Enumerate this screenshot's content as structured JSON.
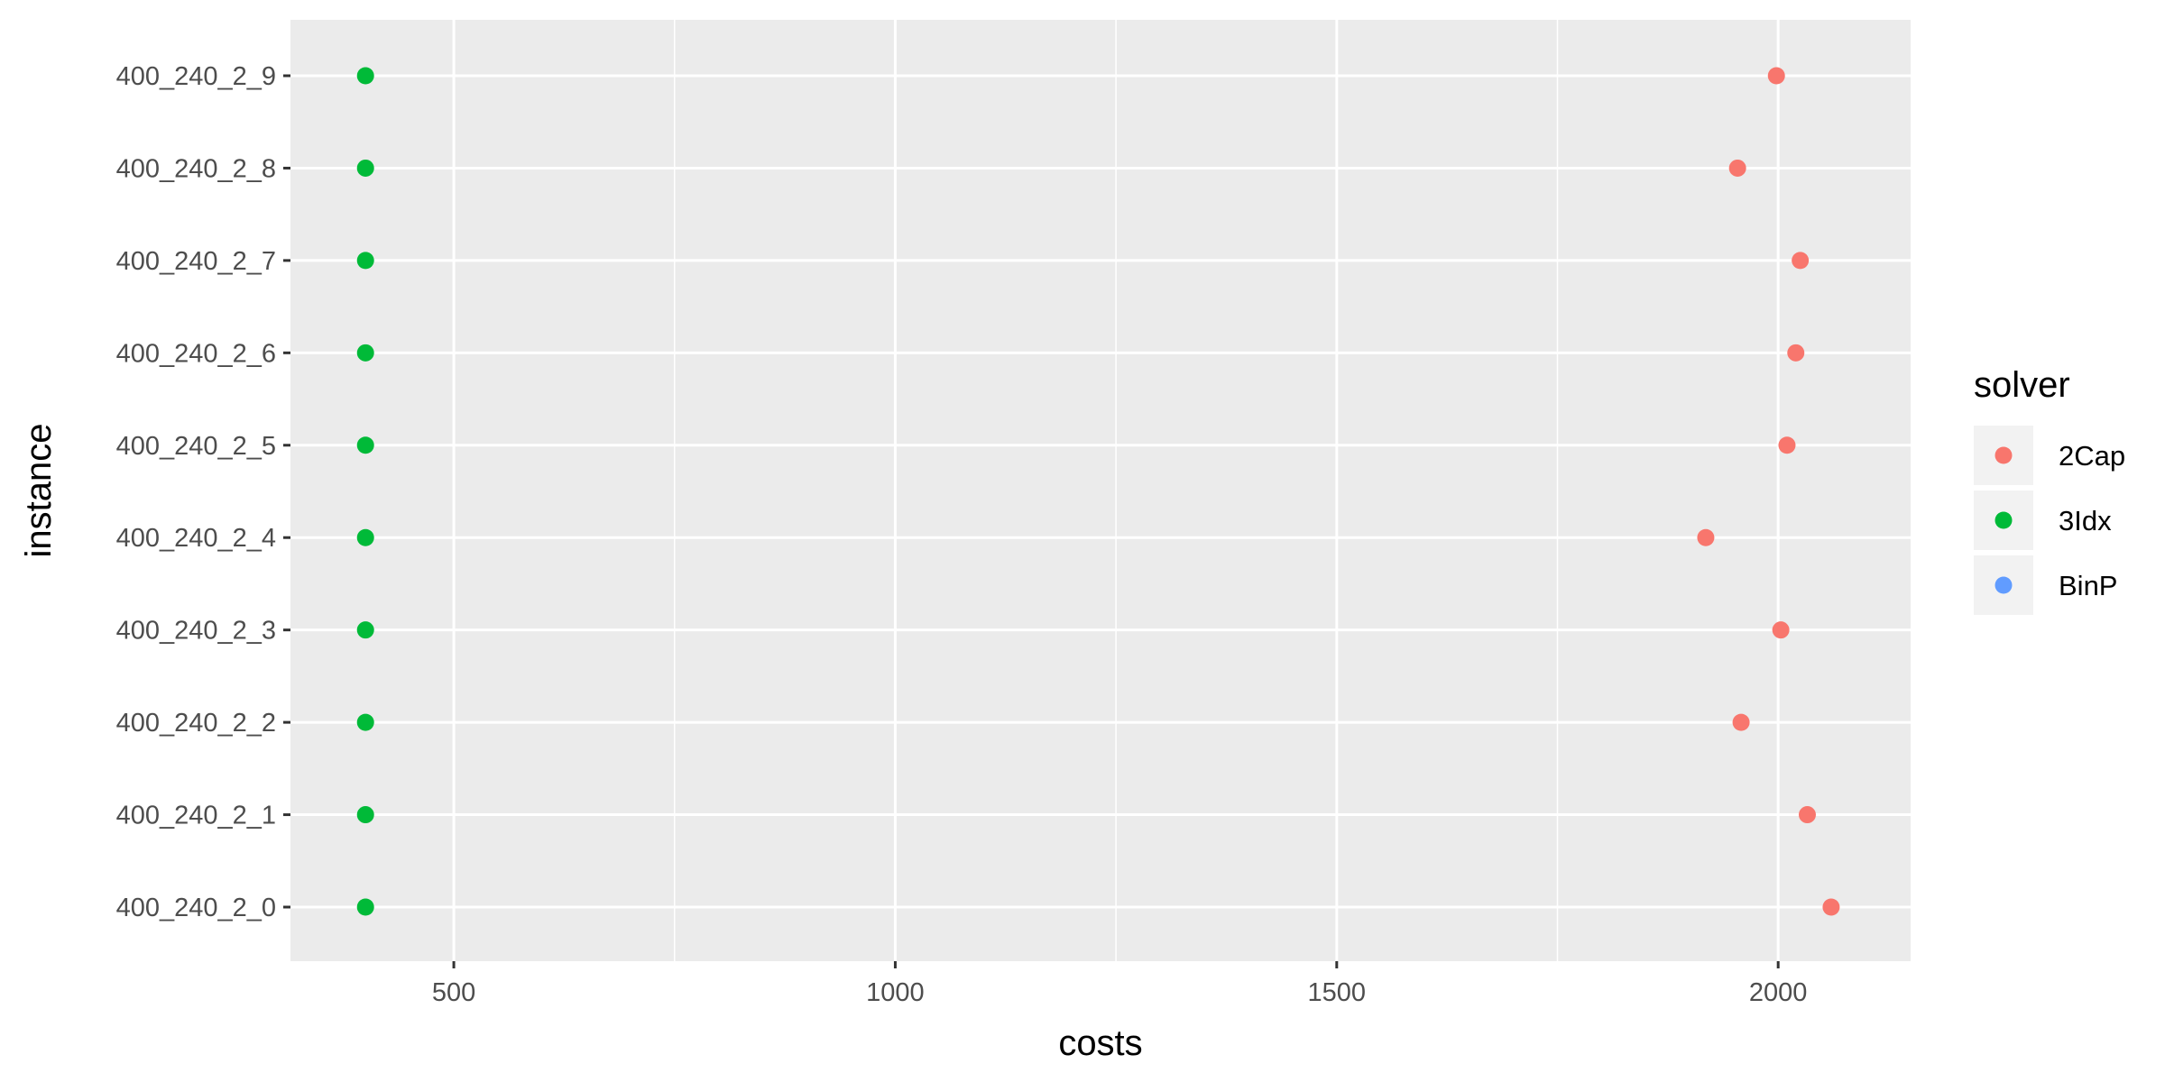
{
  "chart_data": {
    "type": "scatter",
    "xlabel": "costs",
    "ylabel": "instance",
    "xlim": [
      315,
      2150
    ],
    "xticks": [
      500,
      1000,
      1500,
      2000
    ],
    "xtick_labels": [
      "500",
      "1000",
      "1500",
      "2000"
    ],
    "categories": [
      "400_240_2_0",
      "400_240_2_1",
      "400_240_2_2",
      "400_240_2_3",
      "400_240_2_4",
      "400_240_2_5",
      "400_240_2_6",
      "400_240_2_7",
      "400_240_2_8",
      "400_240_2_9"
    ],
    "series": [
      {
        "name": "2Cap",
        "color": "#F8766D",
        "values": [
          2060,
          2033,
          1958,
          2003,
          1918,
          2010,
          2020,
          2025,
          1954,
          1998
        ]
      },
      {
        "name": "3Idx",
        "color": "#00BA38",
        "values": [
          400,
          400,
          400,
          400,
          400,
          400,
          400,
          400,
          400,
          400
        ]
      },
      {
        "name": "BinP",
        "color": "#619CFF",
        "values": []
      }
    ],
    "legend": {
      "title": "solver",
      "position": "right"
    },
    "grid": true,
    "panel_background": "#EBEBEB",
    "grid_color": "#FFFFFF"
  }
}
